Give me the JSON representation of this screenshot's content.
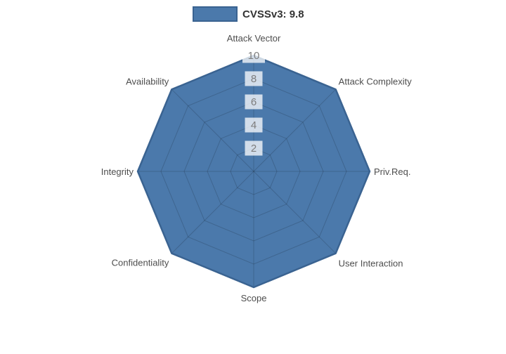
{
  "chart_data": {
    "type": "radar",
    "title": "",
    "categories": [
      "Attack Vector",
      "Attack Complexity",
      "Priv.Req.",
      "User Interaction",
      "Scope",
      "Confidentiality",
      "Integrity",
      "Availability"
    ],
    "series": [
      {
        "name": "CVSSv3: 9.8",
        "values": [
          10,
          10,
          10,
          10,
          10,
          10,
          10,
          10
        ]
      }
    ],
    "rmin": 0,
    "rmax": 10,
    "ticks": [
      2,
      4,
      6,
      8,
      10
    ],
    "grid": true,
    "legend_position": "top",
    "score_label": "CVSSv3: 9.8"
  },
  "colors": {
    "background": "#ffffff",
    "series_fill": "#4b79ab",
    "series_border": "#3a6391",
    "grid_line": "rgba(0,0,0,0.16)",
    "tick_text": "#7d7d7d",
    "tick_backdrop": "rgba(255,255,255,0.75)",
    "axis_label_text": "#4d4d4d",
    "legend_text": "#333333"
  }
}
